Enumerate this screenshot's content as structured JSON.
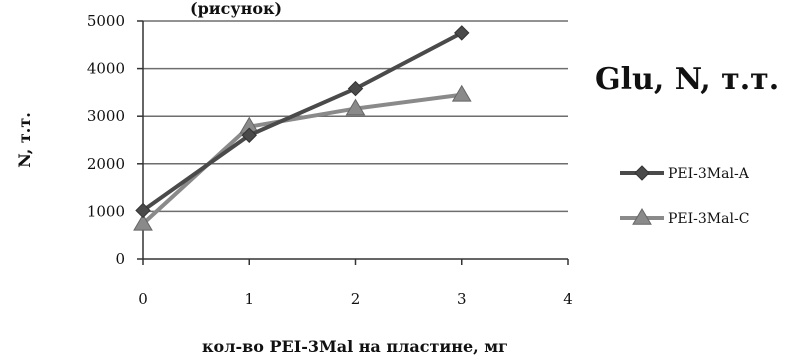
{
  "chart_data": {
    "type": "line",
    "title": "Glu, N, т.т.",
    "top_text": "(рисунок)",
    "xlabel": "кол-во PEI-3Mal на пластине, мг",
    "ylabel": "N, т.т.",
    "xlim": [
      0,
      4
    ],
    "ylim": [
      0,
      5000
    ],
    "xticks": [
      0,
      1,
      2,
      3,
      4
    ],
    "yticks": [
      0,
      1000,
      2000,
      3000,
      4000,
      5000
    ],
    "grid": true,
    "legend_position": "right",
    "series": [
      {
        "name": "PEI-3Mal-A",
        "marker": "diamond",
        "color": "#4a4a4a",
        "x": [
          0,
          1,
          2,
          3
        ],
        "y": [
          1020,
          2600,
          3580,
          4750
        ]
      },
      {
        "name": "PEI-3Mal-C",
        "marker": "triangle",
        "color": "#8a8a8a",
        "x": [
          0,
          1,
          2,
          3
        ],
        "y": [
          740,
          2780,
          3160,
          3450
        ]
      }
    ]
  }
}
